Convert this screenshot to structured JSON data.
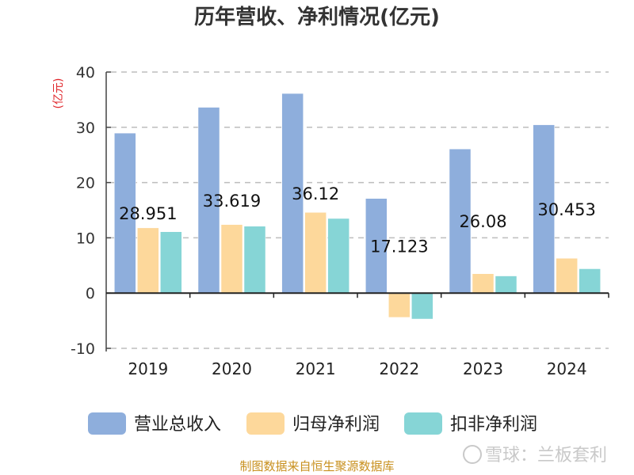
{
  "chart_data": {
    "type": "bar",
    "title": "历年营收、净利情况(亿元)",
    "ylabel": "(亿元)",
    "xlabel": "",
    "categories": [
      "2019",
      "2020",
      "2021",
      "2022",
      "2023",
      "2024"
    ],
    "ylim": [
      -10,
      40
    ],
    "yticks": [
      -10,
      0,
      10,
      20,
      30,
      40
    ],
    "grid": true,
    "legend_position": "bottom",
    "series": [
      {
        "name": "营业总收入",
        "color": "#8eaedc",
        "values": [
          28.951,
          33.619,
          36.12,
          17.123,
          26.08,
          30.453
        ],
        "labels": [
          "28.951",
          "33.619",
          "36.12",
          "17.123",
          "26.08",
          "30.453"
        ]
      },
      {
        "name": "归母净利润",
        "color": "#fdd89b",
        "values": [
          11.8,
          12.4,
          14.6,
          -4.4,
          3.5,
          6.3
        ]
      },
      {
        "name": "扣非净利润",
        "color": "#86d5d6",
        "values": [
          11.1,
          12.1,
          13.5,
          -4.7,
          3.1,
          4.4
        ]
      }
    ]
  },
  "footer": {
    "source": "制图数据来自恒生聚源数据库",
    "watermark": "雪球：兰板套利"
  }
}
